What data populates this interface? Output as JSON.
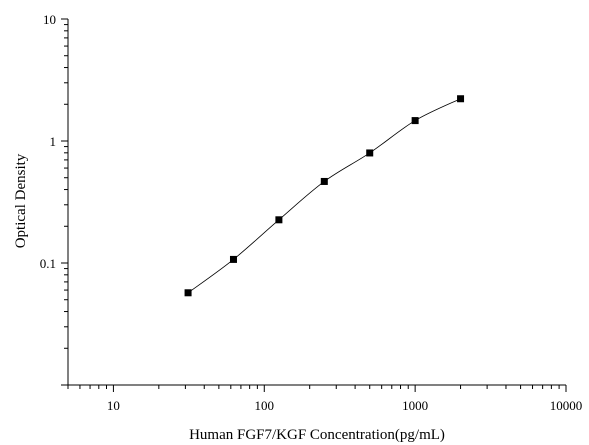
{
  "chart_data": {
    "type": "scatter",
    "xlabel": "Human FGF7/KGF Concentration(pg/mL)",
    "ylabel": "Optical Density",
    "x_scale": "log",
    "y_scale": "log",
    "xlim": [
      5,
      10000
    ],
    "ylim": [
      0.01,
      10
    ],
    "x_ticks": [
      10,
      100,
      1000,
      10000
    ],
    "x_tick_labels": [
      "10",
      "100",
      "1000",
      "10000"
    ],
    "y_ticks": [
      0.1,
      1,
      10
    ],
    "y_tick_labels": [
      "0.1",
      "1",
      "10"
    ],
    "grid": false,
    "legend": "none",
    "marker": "square",
    "fit_line": true,
    "series": [
      {
        "x": [
          31.25,
          62.5,
          125,
          250,
          500,
          1000,
          2000
        ],
        "y": [
          0.057,
          0.107,
          0.226,
          0.466,
          0.798,
          1.47,
          2.22
        ]
      }
    ]
  }
}
